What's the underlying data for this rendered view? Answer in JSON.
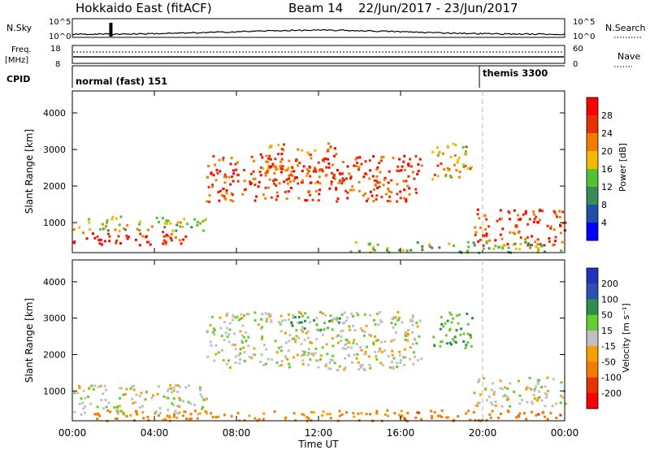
{
  "header": {
    "title": "Hokkaido East (fitACF)",
    "beam": "Beam 14",
    "date_range": "22/Jun/2017 - 23/Jun/2017"
  },
  "summary": {
    "nsky_label": "N.Sky",
    "nsearch_label": "N.Search",
    "log_ticks": [
      "10^5",
      "10^0"
    ],
    "freq_label": "Freq.",
    "freq_unit": "[MHz]",
    "freq_ticks": [
      "18",
      "8"
    ],
    "nave_label": "Nave",
    "nave_ticks": [
      "60",
      "0"
    ],
    "cpid_label": "CPID",
    "modes": [
      {
        "name": "normal (fast) 151",
        "start_hour": 0
      },
      {
        "name": "themis 3300",
        "start_hour": 20
      }
    ]
  },
  "colors": {
    "power": [
      "#0000ff",
      "#1f4faa",
      "#3a8a5e",
      "#52c235",
      "#f3b800",
      "#f07d00",
      "#e63200",
      "#ff0000"
    ],
    "velocity": [
      "#2233bb",
      "#2d4fb0",
      "#2e8f4a",
      "#66cc33",
      "#c0c0c0",
      "#f5a000",
      "#f07d00",
      "#e63200",
      "#ff0000"
    ]
  },
  "chart_data": [
    {
      "type": "heatmap",
      "title": "Power",
      "xlabel": "Time UT",
      "ylabel": "Slant Range [km]",
      "x_ticks": [
        "00:00",
        "04:00",
        "08:00",
        "12:00",
        "16:00",
        "20:00",
        "00:00"
      ],
      "xlim_hours": [
        0,
        24
      ],
      "y_ticks": [
        1000,
        2000,
        3000,
        4000
      ],
      "ylim": [
        180,
        4600
      ],
      "colorbar": {
        "label": "Power [dB]",
        "ticks": [
          "4",
          "8",
          "12",
          "16",
          "20",
          "24",
          "28"
        ],
        "range": [
          0,
          32
        ]
      },
      "features": [
        {
          "t_start": 0,
          "t_end": 5.5,
          "range_km": [
            380,
            780
          ],
          "level_dB": 28
        },
        {
          "t_start": 0,
          "t_end": 6.5,
          "range_km": [
            800,
            1200
          ],
          "level_dB": 16
        },
        {
          "t_start": 6.5,
          "t_end": 17,
          "range_km": [
            1600,
            2900
          ],
          "level_dB": 26
        },
        {
          "t_start": 9.5,
          "t_end": 13,
          "range_km": [
            2900,
            3200
          ],
          "level_dB": 24
        },
        {
          "t_start": 9,
          "t_end": 13,
          "range_km": [
            2100,
            2600
          ],
          "level_dB": 24
        },
        {
          "t_start": 17.5,
          "t_end": 19.5,
          "range_km": [
            2200,
            3200
          ],
          "level_dB": 20
        },
        {
          "t_start": 19.5,
          "t_end": 24,
          "range_km": [
            400,
            1400
          ],
          "level_dB": 26
        },
        {
          "t_start": 13.5,
          "t_end": 24,
          "range_km": [
            200,
            500
          ],
          "level_dB": 14
        }
      ]
    },
    {
      "type": "heatmap",
      "title": "Velocity",
      "xlabel": "Time UT",
      "ylabel": "Slant Range [km]",
      "x_ticks": [
        "00:00",
        "04:00",
        "08:00",
        "12:00",
        "16:00",
        "20:00",
        "00:00"
      ],
      "xlim_hours": [
        0,
        24
      ],
      "y_ticks": [
        1000,
        2000,
        3000,
        4000
      ],
      "ylim": [
        180,
        4600
      ],
      "colorbar": {
        "label": "Velocity [m s⁻¹]",
        "ticks": [
          "200",
          "100",
          "50",
          "15",
          "-15",
          "-50",
          "-100",
          "-200"
        ]
      },
      "features": [
        {
          "t_start": 0,
          "t_end": 6.5,
          "range_km": [
            380,
            1200
          ],
          "velocity_ms": 0
        },
        {
          "t_start": 6.5,
          "t_end": 17,
          "range_km": [
            1600,
            3200
          ],
          "velocity_ms": 0
        },
        {
          "t_start": 10.5,
          "t_end": 13,
          "range_km": [
            2700,
            3100
          ],
          "velocity_ms": 60
        },
        {
          "t_start": 17.5,
          "t_end": 19.5,
          "range_km": [
            2200,
            3200
          ],
          "velocity_ms": 40
        },
        {
          "t_start": 19.5,
          "t_end": 24,
          "range_km": [
            600,
            1400
          ],
          "velocity_ms": 0
        },
        {
          "t_start": 1,
          "t_end": 16,
          "range_km": [
            200,
            500
          ],
          "velocity_ms": -60
        },
        {
          "t_start": 16,
          "t_end": 24,
          "range_km": [
            200,
            500
          ],
          "velocity_ms": -80
        }
      ]
    }
  ]
}
